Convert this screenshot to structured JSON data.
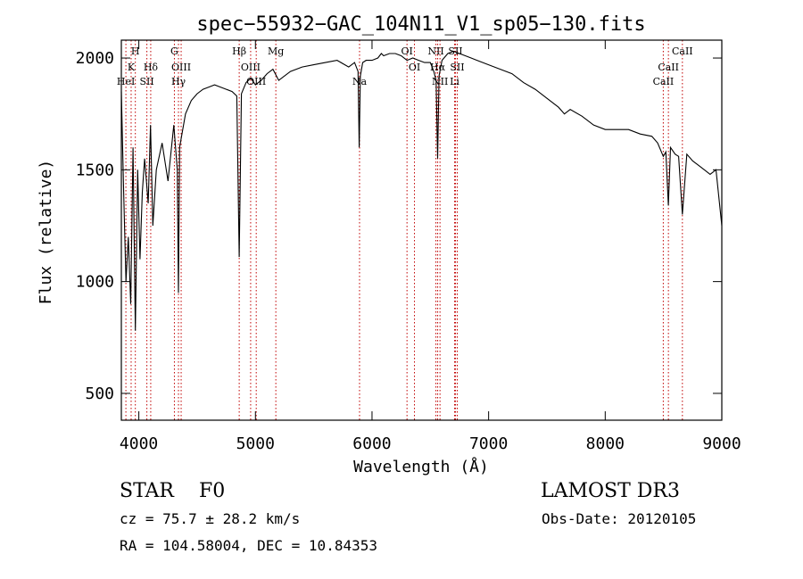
{
  "chart_data": {
    "type": "line",
    "title": "spec−55932−GAC_104N11_V1_sp05−130.fits",
    "xlabel": "Wavelength (Å)",
    "ylabel": "Flux (relative)",
    "xlim": [
      3850,
      9000
    ],
    "ylim": [
      380,
      2080
    ],
    "xticks": [
      4000,
      5000,
      6000,
      7000,
      8000,
      9000
    ],
    "yticks": [
      500,
      1000,
      1500,
      2000
    ],
    "series": [
      {
        "name": "spectrum",
        "x": [
          3850,
          3870,
          3890,
          3910,
          3930,
          3950,
          3970,
          3990,
          4010,
          4030,
          4050,
          4080,
          4100,
          4120,
          4150,
          4200,
          4250,
          4300,
          4330,
          4340,
          4350,
          4400,
          4450,
          4500,
          4550,
          4600,
          4650,
          4700,
          4750,
          4800,
          4840,
          4861,
          4880,
          4920,
          4960,
          5000,
          5050,
          5100,
          5150,
          5200,
          5300,
          5400,
          5500,
          5600,
          5700,
          5800,
          5850,
          5880,
          5890,
          5900,
          5920,
          5950,
          6000,
          6050,
          6080,
          6100,
          6150,
          6200,
          6250,
          6300,
          6350,
          6400,
          6450,
          6500,
          6530,
          6550,
          6563,
          6575,
          6600,
          6650,
          6700,
          6750,
          6800,
          6850,
          6900,
          6950,
          7000,
          7100,
          7200,
          7300,
          7400,
          7500,
          7600,
          7650,
          7700,
          7800,
          7900,
          8000,
          8100,
          8200,
          8300,
          8400,
          8450,
          8498,
          8520,
          8542,
          8560,
          8600,
          8630,
          8662,
          8700,
          8750,
          8800,
          8850,
          8900,
          8950,
          9000
        ],
        "values": [
          1850,
          1400,
          1000,
          1200,
          900,
          1600,
          780,
          1500,
          1100,
          1400,
          1550,
          1350,
          1700,
          1250,
          1500,
          1620,
          1450,
          1700,
          1500,
          950,
          1600,
          1750,
          1810,
          1840,
          1860,
          1870,
          1880,
          1870,
          1860,
          1850,
          1830,
          1110,
          1840,
          1890,
          1910,
          1880,
          1900,
          1930,
          1950,
          1900,
          1940,
          1960,
          1970,
          1980,
          1990,
          1960,
          1980,
          1940,
          1600,
          1920,
          1980,
          1990,
          1990,
          2000,
          2020,
          2010,
          2020,
          2020,
          2010,
          1990,
          2000,
          1990,
          1980,
          1980,
          1940,
          1900,
          1550,
          1920,
          1990,
          2020,
          2030,
          2020,
          2010,
          2000,
          1990,
          1980,
          1970,
          1950,
          1930,
          1890,
          1860,
          1820,
          1780,
          1750,
          1770,
          1740,
          1700,
          1680,
          1680,
          1680,
          1660,
          1650,
          1620,
          1560,
          1580,
          1340,
          1600,
          1570,
          1560,
          1300,
          1570,
          1540,
          1520,
          1500,
          1480,
          1500,
          1250
        ]
      }
    ],
    "lines": [
      {
        "label": "H",
        "wavelength": 3970,
        "row": 0
      },
      {
        "label": "K",
        "wavelength": 3934,
        "row": 1
      },
      {
        "label": "Hδ",
        "wavelength": 4102,
        "row": 1
      },
      {
        "label": "HeI",
        "wavelength": 3889,
        "row": 2
      },
      {
        "label": "SII",
        "wavelength": 4069,
        "row": 2
      },
      {
        "label": "G",
        "wavelength": 4305,
        "row": 0
      },
      {
        "label": "OIII",
        "wavelength": 4363,
        "row": 1
      },
      {
        "label": "Hγ",
        "wavelength": 4340,
        "row": 2
      },
      {
        "label": "Hβ",
        "wavelength": 4861,
        "row": 0
      },
      {
        "label": "OIII",
        "wavelength": 4959,
        "row": 1
      },
      {
        "label": "OIII",
        "wavelength": 5007,
        "row": 2
      },
      {
        "label": "Mg",
        "wavelength": 5175,
        "row": 0
      },
      {
        "label": "Na",
        "wavelength": 5893,
        "row": 2
      },
      {
        "label": "OI",
        "wavelength": 6300,
        "row": 0
      },
      {
        "label": "OI",
        "wavelength": 6364,
        "row": 1
      },
      {
        "label": "NII",
        "wavelength": 6548,
        "row": 0
      },
      {
        "label": "Hα",
        "wavelength": 6563,
        "row": 1
      },
      {
        "label": "NII",
        "wavelength": 6583,
        "row": 2
      },
      {
        "label": "SII",
        "wavelength": 6716,
        "row": 0
      },
      {
        "label": "SII",
        "wavelength": 6731,
        "row": 1
      },
      {
        "label": "Li",
        "wavelength": 6708,
        "row": 2
      },
      {
        "label": "CaII",
        "wavelength": 8662,
        "row": 0
      },
      {
        "label": "CaII",
        "wavelength": 8542,
        "row": 1
      },
      {
        "label": "CaII",
        "wavelength": 8498,
        "row": 2
      }
    ]
  },
  "info": {
    "object_class": "STAR",
    "subclass": "F0",
    "survey": "LAMOST DR3",
    "cz": "cz = 75.7 ± 28.2 km/s",
    "obs_date": "Obs-Date: 20120105",
    "radec": "RA = 104.58004, DEC =  10.84353"
  }
}
